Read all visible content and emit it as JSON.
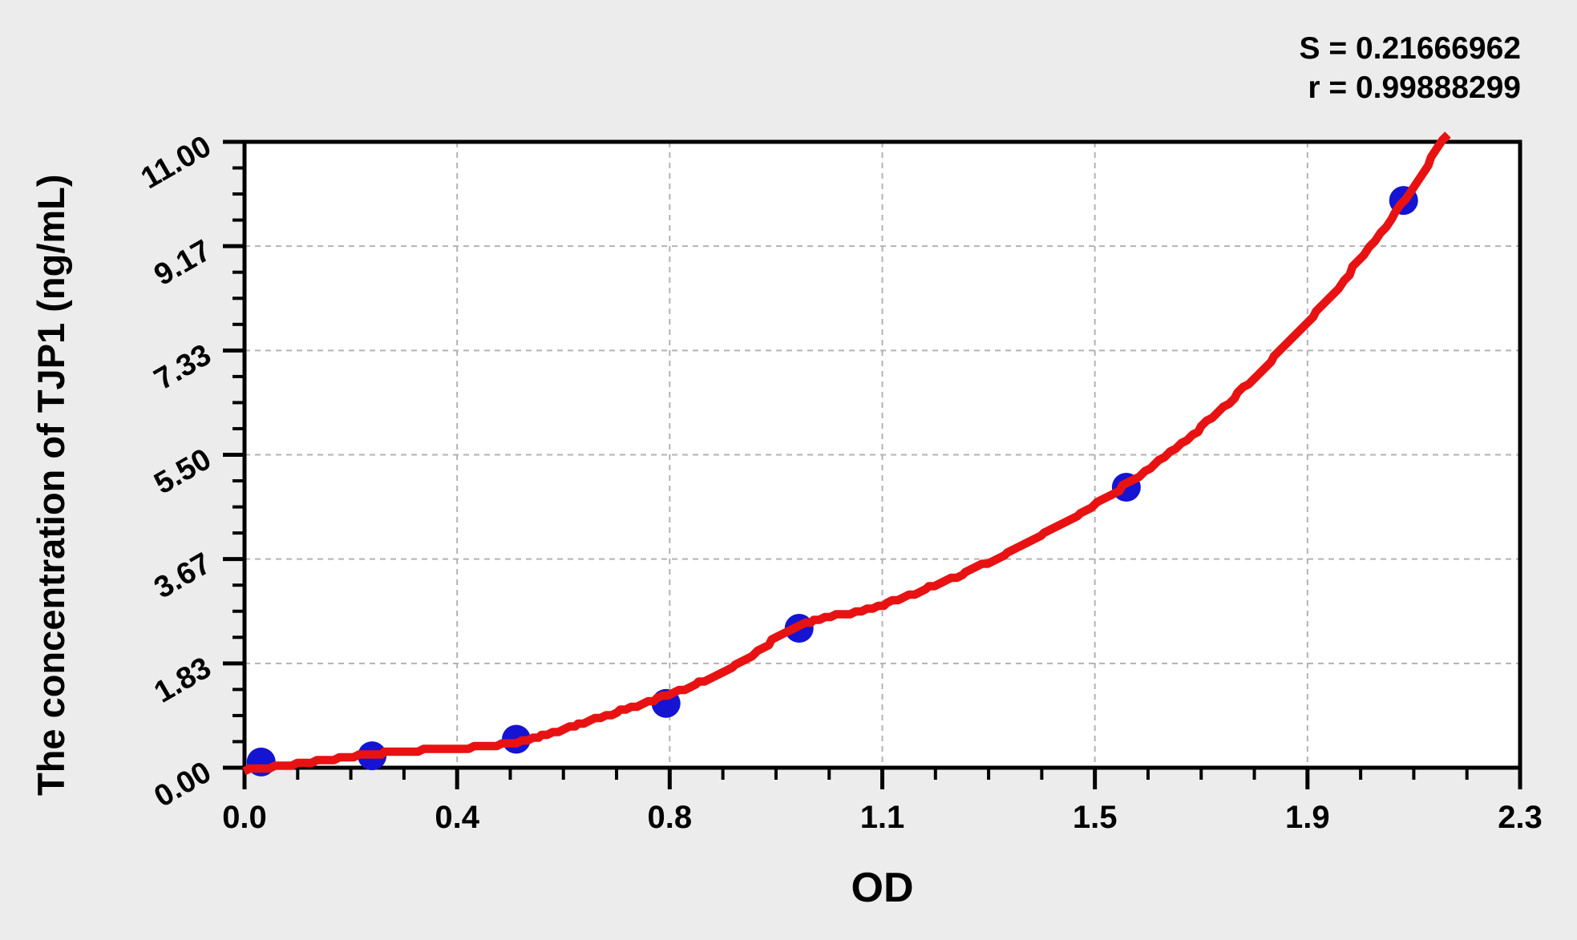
{
  "page": {
    "background_color": "#ececec",
    "plot_background_color": "#ffffff"
  },
  "stats": {
    "s_line": "S = 0.21666962",
    "r_line": "r = 0.99888299"
  },
  "axes": {
    "x_title": "OD",
    "y_title": "The concentration of TJP1 (ng/mL)"
  },
  "chart_data": {
    "type": "scatter",
    "title": "",
    "xlabel": "OD",
    "ylabel": "The concentration of TJP1 (ng/mL)",
    "xlim": [
      0,
      2.3
    ],
    "ylim": [
      0,
      11
    ],
    "x_tick_labels": [
      "0.0",
      "0.4",
      "0.8",
      "1.1",
      "1.5",
      "1.9",
      "2.3"
    ],
    "y_tick_labels": [
      "0.00",
      "1.83",
      "3.67",
      "5.50",
      "7.33",
      "9.17",
      "11.00"
    ],
    "minor_divisions_per_major": 4,
    "grid": {
      "show": true,
      "style": "dashed",
      "color": "#b3b3b3",
      "position": "interior_major_ticks"
    },
    "legend": {
      "show": false
    },
    "annotations": [
      {
        "name": "S",
        "text": "S = 0.21666962",
        "value": 0.21666962
      },
      {
        "name": "r",
        "text": "r = 0.99888299",
        "value": 0.99888299
      }
    ],
    "series": [
      {
        "name": "standard-points",
        "type": "scatter",
        "color": "#1414d2",
        "marker": "circle",
        "points": [
          [
            0.03,
            0.1
          ],
          [
            0.23,
            0.21
          ],
          [
            0.49,
            0.5
          ],
          [
            0.76,
            1.13
          ],
          [
            1.0,
            2.45
          ],
          [
            1.59,
            4.93
          ],
          [
            2.09,
            9.97
          ]
        ]
      },
      {
        "name": "fitted-curve",
        "type": "line",
        "color": "#e81212",
        "control_points": [
          [
            0.0,
            -0.05
          ],
          [
            0.25,
            0.26
          ],
          [
            0.49,
            0.45
          ],
          [
            0.63,
            0.85
          ],
          [
            0.77,
            1.3
          ],
          [
            0.88,
            1.77
          ],
          [
            1.0,
            2.5
          ],
          [
            1.15,
            2.85
          ],
          [
            1.53,
            4.6
          ],
          [
            1.75,
            6.2
          ],
          [
            1.96,
            8.3
          ],
          [
            2.03,
            9.17
          ],
          [
            2.09,
            9.95
          ],
          [
            2.17,
            11.15
          ]
        ]
      }
    ]
  }
}
